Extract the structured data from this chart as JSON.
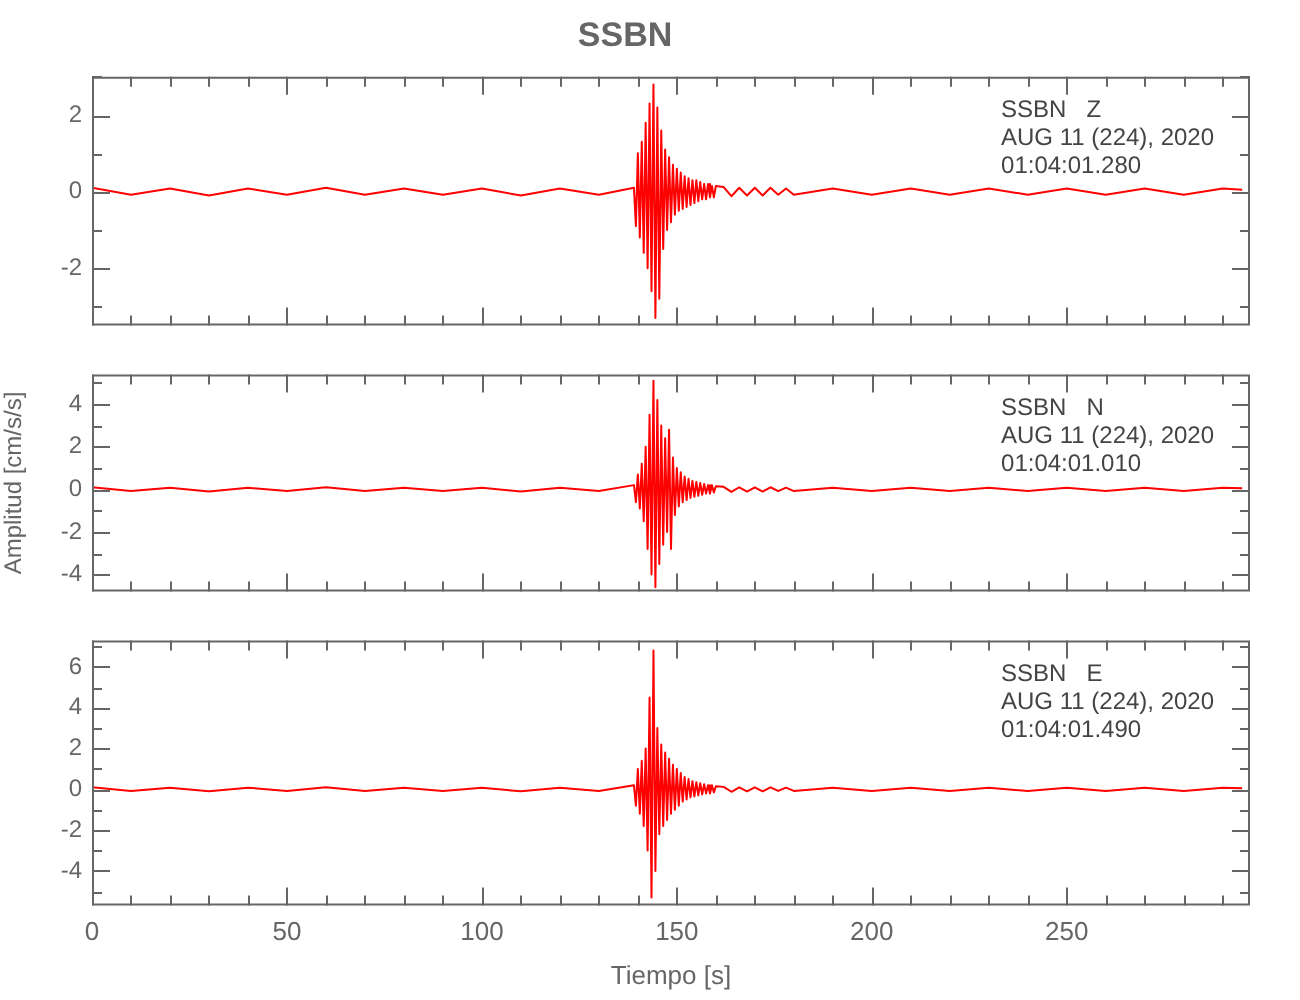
{
  "chart_data": [
    {
      "type": "line",
      "title": "SSBN",
      "annotations": [
        "SSBN   Z",
        "AUG 11 (224), 2020",
        "01:04:01.280"
      ],
      "tick_labels": "y",
      "xlim": [
        0,
        297
      ],
      "xticks": [
        0,
        {
          "value": 10,
          "label": null
        },
        {
          "value": 20,
          "label": null
        },
        {
          "value": 30,
          "label": null
        },
        {
          "value": 40,
          "label": null
        },
        50,
        {
          "value": 60,
          "label": null
        },
        {
          "value": 70,
          "label": null
        },
        {
          "value": 80,
          "label": null
        },
        {
          "value": 90,
          "label": null
        },
        100,
        {
          "value": 110,
          "label": null
        },
        {
          "value": 120,
          "label": null
        },
        {
          "value": 130,
          "label": null
        },
        {
          "value": 140,
          "label": null
        },
        150,
        {
          "value": 160,
          "label": null
        },
        {
          "value": 170,
          "label": null
        },
        {
          "value": 180,
          "label": null
        },
        {
          "value": 190,
          "label": null
        },
        200,
        {
          "value": 210,
          "label": null
        },
        {
          "value": 220,
          "label": null
        },
        {
          "value": 230,
          "label": null
        },
        {
          "value": 240,
          "label": null
        },
        250,
        {
          "value": 260,
          "label": null
        },
        {
          "value": 270,
          "label": null
        },
        {
          "value": 280,
          "label": null
        },
        {
          "value": 290,
          "label": null
        }
      ],
      "ylim": [
        -3.5,
        3
      ],
      "yticks": [
        {
          "value": -3,
          "label": null
        },
        -2,
        {
          "value": -1,
          "label": null
        },
        0,
        {
          "value": 1,
          "label": null
        },
        2,
        {
          "value": 3,
          "label": null
        }
      ],
      "series": [
        {
          "color": "#ff0000",
          "x": [
            0,
            10,
            20,
            30,
            40,
            50,
            60,
            70,
            80,
            90,
            100,
            110,
            120,
            130,
            139,
            139.5,
            140,
            140.5,
            141,
            141.5,
            142,
            142.5,
            143,
            143.5,
            144,
            144.5,
            145,
            145.5,
            146,
            146.5,
            147,
            147.5,
            148,
            148.5,
            149,
            149.5,
            150,
            150.5,
            151,
            151.5,
            152,
            152.5,
            153,
            153.5,
            154,
            154.5,
            155,
            155.5,
            156,
            156.5,
            157,
            157.5,
            158,
            158.5,
            159,
            159.5,
            160,
            162,
            164,
            166,
            168,
            170,
            172,
            174,
            176,
            178,
            180,
            190,
            200,
            210,
            220,
            230,
            240,
            250,
            260,
            270,
            280,
            290,
            295
          ],
          "values": [
            0.1,
            -0.08,
            0.08,
            -0.1,
            0.08,
            -0.08,
            0.1,
            -0.08,
            0.08,
            -0.08,
            0.08,
            -0.1,
            0.08,
            -0.08,
            0.1,
            -0.9,
            1.0,
            -1.2,
            1.3,
            -1.6,
            1.8,
            -2.0,
            2.3,
            -2.6,
            2.8,
            -3.3,
            2.2,
            -2.8,
            1.6,
            -1.5,
            1.1,
            -1.0,
            0.9,
            -0.8,
            0.7,
            -0.6,
            0.6,
            -0.5,
            0.5,
            -0.45,
            0.4,
            -0.4,
            0.35,
            -0.35,
            0.3,
            -0.3,
            0.3,
            -0.25,
            0.25,
            -0.2,
            0.2,
            -0.2,
            0.2,
            -0.15,
            0.15,
            -0.15,
            0.15,
            0.12,
            -0.12,
            0.1,
            -0.1,
            0.1,
            -0.1,
            0.1,
            -0.08,
            0.08,
            -0.08,
            0.08,
            -0.08,
            0.08,
            -0.08,
            0.08,
            -0.08,
            0.08,
            -0.08,
            0.08,
            -0.08,
            0.08,
            0.05
          ]
        }
      ]
    },
    {
      "type": "line",
      "ylabel": "Amplitud [cm/s/s]",
      "annotations": [
        "SSBN   N",
        "AUG 11 (224), 2020",
        "01:04:01.010"
      ],
      "tick_labels": "y",
      "xlim": [
        0,
        297
      ],
      "xticks": [
        0,
        {
          "value": 10,
          "label": null
        },
        {
          "value": 20,
          "label": null
        },
        {
          "value": 30,
          "label": null
        },
        {
          "value": 40,
          "label": null
        },
        50,
        {
          "value": 60,
          "label": null
        },
        {
          "value": 70,
          "label": null
        },
        {
          "value": 80,
          "label": null
        },
        {
          "value": 90,
          "label": null
        },
        100,
        {
          "value": 110,
          "label": null
        },
        {
          "value": 120,
          "label": null
        },
        {
          "value": 130,
          "label": null
        },
        {
          "value": 140,
          "label": null
        },
        150,
        {
          "value": 160,
          "label": null
        },
        {
          "value": 170,
          "label": null
        },
        {
          "value": 180,
          "label": null
        },
        {
          "value": 190,
          "label": null
        },
        200,
        {
          "value": 210,
          "label": null
        },
        {
          "value": 220,
          "label": null
        },
        {
          "value": 230,
          "label": null
        },
        {
          "value": 240,
          "label": null
        },
        250,
        {
          "value": 260,
          "label": null
        },
        {
          "value": 270,
          "label": null
        },
        {
          "value": 280,
          "label": null
        },
        {
          "value": 290,
          "label": null
        }
      ],
      "ylim": [
        -4.8,
        5.4
      ],
      "yticks": [
        -4,
        {
          "value": -3,
          "label": null
        },
        -2,
        {
          "value": -1,
          "label": null
        },
        0,
        {
          "value": 1,
          "label": null
        },
        2,
        {
          "value": 3,
          "label": null
        },
        4,
        {
          "value": 5,
          "label": null
        }
      ],
      "series": [
        {
          "color": "#ff0000",
          "x": [
            0,
            10,
            20,
            30,
            40,
            50,
            60,
            70,
            80,
            90,
            100,
            110,
            120,
            130,
            139,
            139.5,
            140,
            140.5,
            141,
            141.5,
            142,
            142.5,
            143,
            143.5,
            144,
            144.5,
            145,
            145.5,
            146,
            146.5,
            147,
            147.5,
            148,
            148.5,
            149,
            149.5,
            150,
            150.5,
            151,
            151.5,
            152,
            152.5,
            153,
            153.5,
            154,
            154.5,
            155,
            155.5,
            156,
            156.5,
            157,
            157.5,
            158,
            158.5,
            159,
            159.5,
            160,
            162,
            164,
            166,
            168,
            170,
            172,
            174,
            176,
            178,
            180,
            190,
            200,
            210,
            220,
            230,
            240,
            250,
            260,
            270,
            280,
            290,
            295
          ],
          "values": [
            0.1,
            -0.08,
            0.08,
            -0.1,
            0.08,
            -0.08,
            0.1,
            -0.08,
            0.08,
            -0.08,
            0.08,
            -0.1,
            0.08,
            -0.08,
            0.2,
            -0.6,
            0.7,
            -0.9,
            1.2,
            -1.5,
            2.0,
            -2.8,
            3.5,
            -4.0,
            5.1,
            -4.6,
            4.2,
            -3.5,
            3.0,
            -2.6,
            2.4,
            -2.0,
            2.8,
            -2.8,
            1.5,
            -1.2,
            1.0,
            -0.8,
            0.8,
            -0.6,
            0.6,
            -0.5,
            0.5,
            -0.4,
            0.4,
            -0.35,
            0.35,
            -0.3,
            0.3,
            -0.25,
            0.25,
            -0.2,
            0.2,
            -0.2,
            0.2,
            -0.15,
            0.15,
            0.12,
            -0.12,
            0.1,
            -0.1,
            0.1,
            -0.1,
            0.1,
            -0.08,
            0.08,
            -0.08,
            0.08,
            -0.08,
            0.08,
            -0.08,
            0.08,
            -0.08,
            0.08,
            -0.08,
            0.08,
            -0.08,
            0.08,
            0.05
          ]
        }
      ]
    },
    {
      "type": "line",
      "xlabel": "Tiempo [s]",
      "annotations": [
        "SSBN   E",
        "AUG 11 (224), 2020",
        "01:04:01.490"
      ],
      "xlim": [
        0,
        297
      ],
      "xticks": [
        0,
        {
          "value": 10,
          "label": null
        },
        {
          "value": 20,
          "label": null
        },
        {
          "value": 30,
          "label": null
        },
        {
          "value": 40,
          "label": null
        },
        50,
        {
          "value": 60,
          "label": null
        },
        {
          "value": 70,
          "label": null
        },
        {
          "value": 80,
          "label": null
        },
        {
          "value": 90,
          "label": null
        },
        100,
        {
          "value": 110,
          "label": null
        },
        {
          "value": 120,
          "label": null
        },
        {
          "value": 130,
          "label": null
        },
        {
          "value": 140,
          "label": null
        },
        150,
        {
          "value": 160,
          "label": null
        },
        {
          "value": 170,
          "label": null
        },
        {
          "value": 180,
          "label": null
        },
        {
          "value": 190,
          "label": null
        },
        200,
        {
          "value": 210,
          "label": null
        },
        {
          "value": 220,
          "label": null
        },
        {
          "value": 230,
          "label": null
        },
        {
          "value": 240,
          "label": null
        },
        250,
        {
          "value": 260,
          "label": null
        },
        {
          "value": 270,
          "label": null
        },
        {
          "value": 280,
          "label": null
        },
        {
          "value": 290,
          "label": null
        }
      ],
      "ylim": [
        -5.7,
        7.3
      ],
      "yticks": [
        {
          "value": -5,
          "label": null
        },
        -4,
        {
          "value": -3,
          "label": null
        },
        -2,
        {
          "value": -1,
          "label": null
        },
        0,
        {
          "value": 1,
          "label": null
        },
        2,
        {
          "value": 3,
          "label": null
        },
        4,
        {
          "value": 5,
          "label": null
        },
        6,
        {
          "value": 7,
          "label": null
        }
      ],
      "series": [
        {
          "color": "#ff0000",
          "x": [
            0,
            10,
            20,
            30,
            40,
            50,
            60,
            70,
            80,
            90,
            100,
            110,
            120,
            130,
            139,
            139.5,
            140,
            140.5,
            141,
            141.5,
            142,
            142.5,
            143,
            143.5,
            144,
            144.5,
            145,
            145.5,
            146,
            146.5,
            147,
            147.5,
            148,
            148.5,
            149,
            149.5,
            150,
            150.5,
            151,
            151.5,
            152,
            152.5,
            153,
            153.5,
            154,
            154.5,
            155,
            155.5,
            156,
            156.5,
            157,
            157.5,
            158,
            158.5,
            159,
            159.5,
            160,
            162,
            164,
            166,
            168,
            170,
            172,
            174,
            176,
            178,
            180,
            190,
            200,
            210,
            220,
            230,
            240,
            250,
            260,
            270,
            280,
            290,
            295
          ],
          "values": [
            0.1,
            -0.08,
            0.08,
            -0.1,
            0.08,
            -0.08,
            0.1,
            -0.08,
            0.08,
            -0.08,
            0.08,
            -0.1,
            0.08,
            -0.08,
            0.2,
            -0.8,
            1.0,
            -1.2,
            1.4,
            -1.8,
            2.0,
            -3.0,
            4.5,
            -5.3,
            6.8,
            -4.0,
            3.0,
            -2.2,
            2.2,
            -1.8,
            1.8,
            -1.5,
            1.5,
            -1.2,
            1.2,
            -1.0,
            1.0,
            -0.8,
            0.8,
            -0.6,
            0.6,
            -0.5,
            0.5,
            -0.4,
            0.4,
            -0.35,
            0.35,
            -0.3,
            0.3,
            -0.25,
            0.25,
            -0.2,
            0.2,
            -0.2,
            0.2,
            -0.15,
            0.15,
            0.12,
            -0.12,
            0.1,
            -0.1,
            0.1,
            -0.1,
            0.1,
            -0.08,
            0.08,
            -0.08,
            0.08,
            -0.08,
            0.08,
            -0.08,
            0.08,
            -0.08,
            0.08,
            -0.08,
            0.08,
            -0.08,
            0.08,
            0.05
          ]
        }
      ]
    }
  ]
}
